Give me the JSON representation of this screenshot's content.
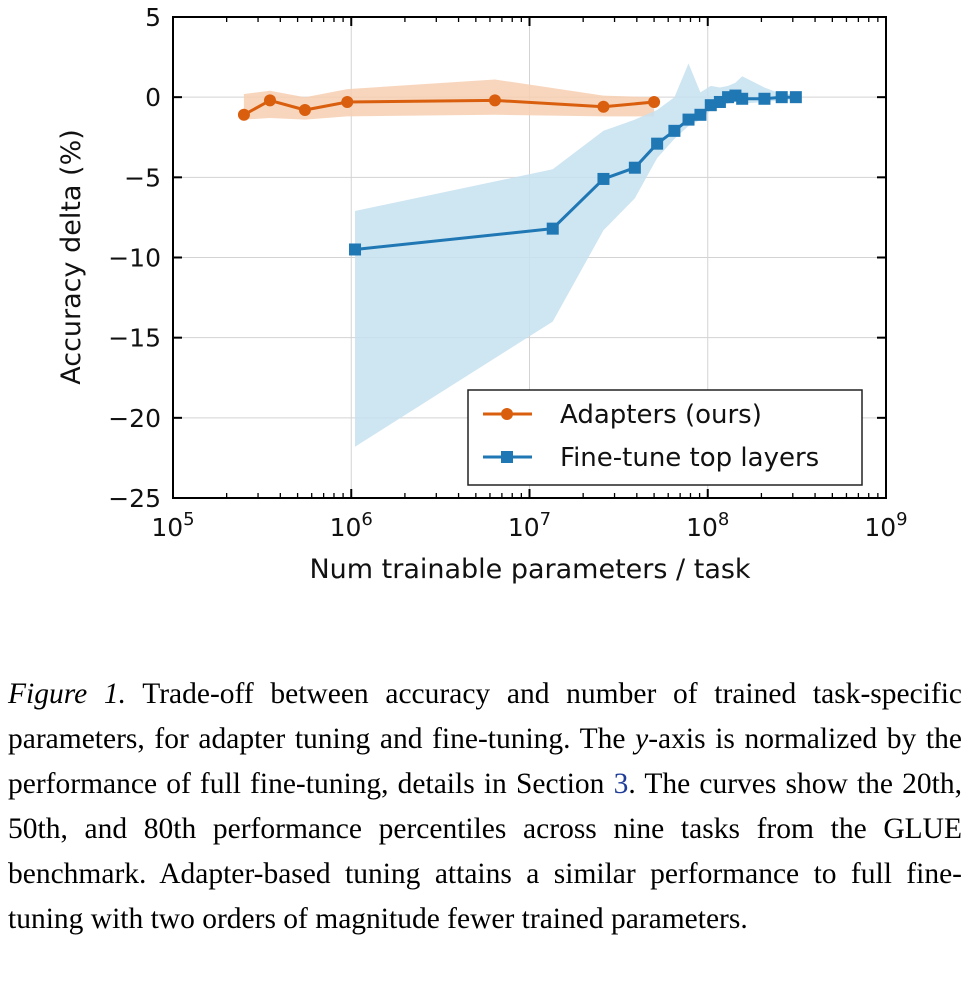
{
  "chart_data": {
    "type": "line",
    "xlabel": "Num trainable parameters / task",
    "ylabel": "Accuracy delta (%)",
    "xscale": "log",
    "xlim": [
      100000,
      1000000000
    ],
    "ylim": [
      -25,
      5
    ],
    "xticks": [
      {
        "value": 100000,
        "base": "10",
        "exp": "5"
      },
      {
        "value": 1000000,
        "base": "10",
        "exp": "6"
      },
      {
        "value": 10000000,
        "base": "10",
        "exp": "7"
      },
      {
        "value": 100000000,
        "base": "10",
        "exp": "8"
      },
      {
        "value": 1000000000,
        "base": "10",
        "exp": "9"
      }
    ],
    "yticks": [
      {
        "value": 5,
        "label": "5"
      },
      {
        "value": 0,
        "label": "0"
      },
      {
        "value": -5,
        "label": "−5"
      },
      {
        "value": -10,
        "label": "−10"
      },
      {
        "value": -15,
        "label": "−15"
      },
      {
        "value": -20,
        "label": "−20"
      },
      {
        "value": -25,
        "label": "−25"
      }
    ],
    "grid": true,
    "legend_position": "lower-right",
    "series": [
      {
        "name": "Adapters (ours)",
        "color": "#d95f0e",
        "band_color": "#f7cfb2",
        "marker": "circle",
        "x": [
          250000,
          350000,
          550000,
          950000,
          6400000,
          26000000,
          50000000
        ],
        "y": [
          -1.1,
          -0.2,
          -0.8,
          -0.3,
          -0.2,
          -0.6,
          -0.3
        ],
        "band": {
          "x": [
            250000,
            350000,
            550000,
            950000,
            6400000,
            26000000,
            50000000
          ],
          "lower": [
            -1.4,
            -1.3,
            -1.4,
            -1.2,
            -1.1,
            -1.2,
            -1.2
          ],
          "upper": [
            0.2,
            0.4,
            0.0,
            0.5,
            1.1,
            0.1,
            0.0
          ]
        }
      },
      {
        "name": "Fine-tune top layers",
        "color": "#1f77b4",
        "band_color": "#c6e0f0",
        "marker": "square",
        "x": [
          1050000,
          13500000,
          26000000,
          39000000,
          52000000,
          65000000,
          78000000,
          91000000,
          104000000,
          117000000,
          130000000,
          143000000,
          156000000,
          208000000,
          260000000,
          312000000
        ],
        "y": [
          -9.5,
          -8.2,
          -5.1,
          -4.4,
          -2.9,
          -2.1,
          -1.4,
          -1.1,
          -0.5,
          -0.3,
          0.0,
          0.1,
          -0.1,
          -0.1,
          0.0,
          0.0
        ],
        "band": {
          "x": [
            1050000,
            13500000,
            26000000,
            39000000,
            52000000,
            65000000,
            78000000,
            91000000,
            104000000,
            117000000,
            130000000,
            143000000,
            156000000,
            208000000,
            260000000,
            312000000
          ],
          "lower": [
            -21.8,
            -14.0,
            -8.3,
            -6.3,
            -3.8,
            -2.6,
            -1.8,
            -1.4,
            -0.8,
            -0.6,
            -0.4,
            -0.3,
            -0.4,
            -0.3,
            -0.2,
            -0.2
          ],
          "upper": [
            -7.1,
            -4.5,
            -2.1,
            -1.4,
            -0.8,
            0.0,
            2.1,
            0.3,
            0.7,
            0.6,
            0.7,
            0.9,
            1.3,
            0.6,
            0.2,
            0.2
          ]
        }
      }
    ]
  },
  "caption": {
    "figure_label": "Figure 1.",
    "t1": " Trade-off between accuracy and number of trained task-specific parameters, for adapter tuning and fine-tuning. The ",
    "y_var": "y",
    "t2": "-axis is normalized by the performance of full fine-tuning, details in Section ",
    "section_ref": "3",
    "t3": ". The curves show the 20th, 50th, and 80th performance percentiles across nine tasks from the GLUE benchmark. Adapter-based tuning attains a similar performance to full fine-tuning with two orders of magnitude fewer trained parameters."
  }
}
